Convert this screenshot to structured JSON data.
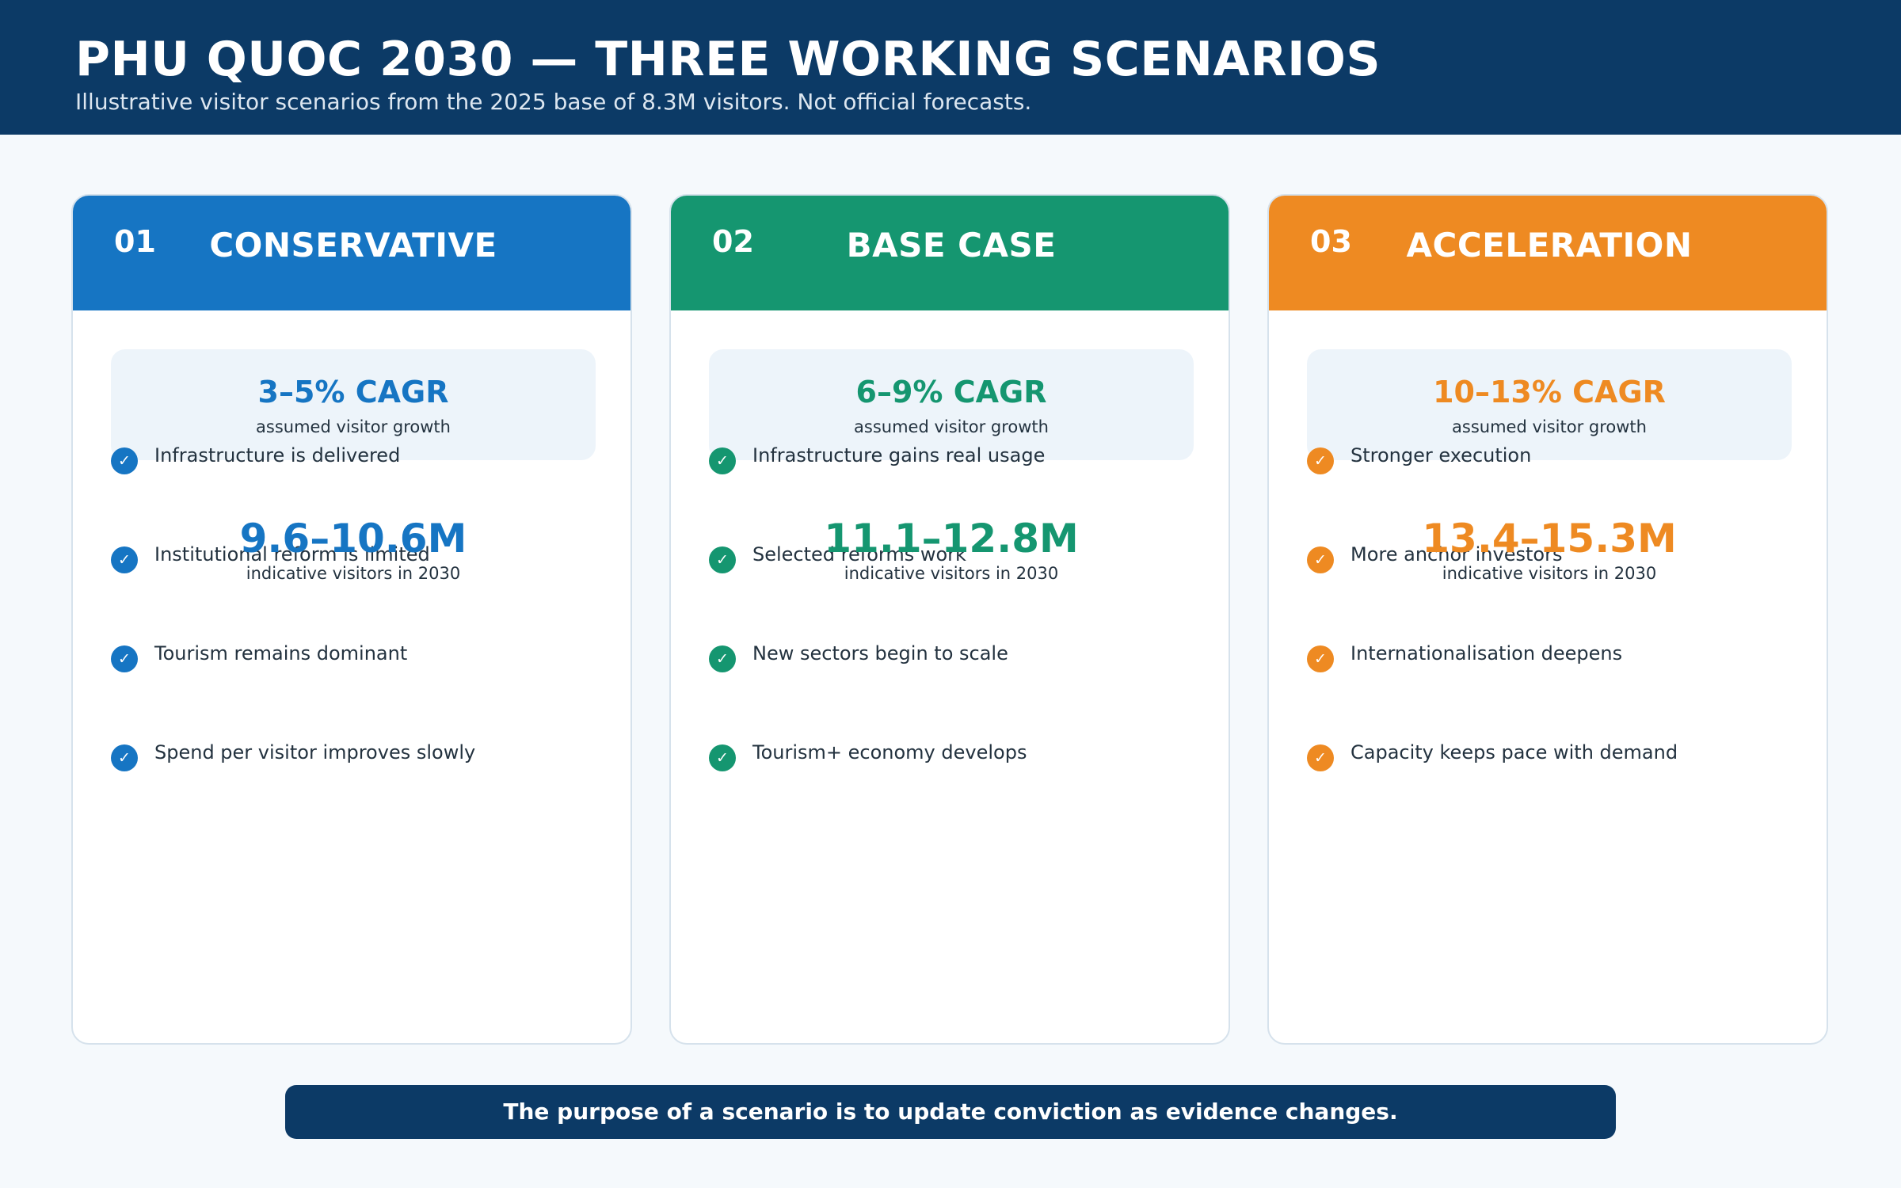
{
  "header": {
    "title": "PHU QUOC 2030 — THREE WORKING SCENARIOS",
    "subtitle": "Illustrative visitor scenarios from the 2025 base of 8.3M visitors. Not official forecasts."
  },
  "scenarios": [
    {
      "number": "01",
      "name": "CONSERVATIVE",
      "color": "#1675c3",
      "cagr": "3–5% CAGR",
      "cagr_label": "assumed visitor growth",
      "visitors": "9.6–10.6M",
      "visitors_label": "indicative visitors in 2030",
      "check_icon": "✓",
      "items": [
        "Infrastructure is delivered",
        "Institutional reform is limited",
        "Tourism remains dominant",
        "Spend per visitor improves slowly"
      ]
    },
    {
      "number": "02",
      "name": "BASE CASE",
      "color": "#159670",
      "cagr": "6–9% CAGR",
      "cagr_label": "assumed visitor growth",
      "visitors": "11.1–12.8M",
      "visitors_label": "indicative visitors in 2030",
      "check_icon": "✓",
      "items": [
        "Infrastructure gains real usage",
        "Selected reforms work",
        "New sectors begin to scale",
        "Tourism+ economy develops"
      ]
    },
    {
      "number": "03",
      "name": "ACCELERATION",
      "color": "#ee8a22",
      "cagr": "10–13% CAGR",
      "cagr_label": "assumed visitor growth",
      "visitors": "13.4–15.3M",
      "visitors_label": "indicative visitors in 2030",
      "check_icon": "✓",
      "items": [
        "Stronger execution",
        "More anchor investors",
        "Internationalisation deepens",
        "Capacity keeps pace with demand"
      ]
    }
  ],
  "footer": {
    "text": "The purpose of a scenario is to update conviction as evidence changes."
  }
}
